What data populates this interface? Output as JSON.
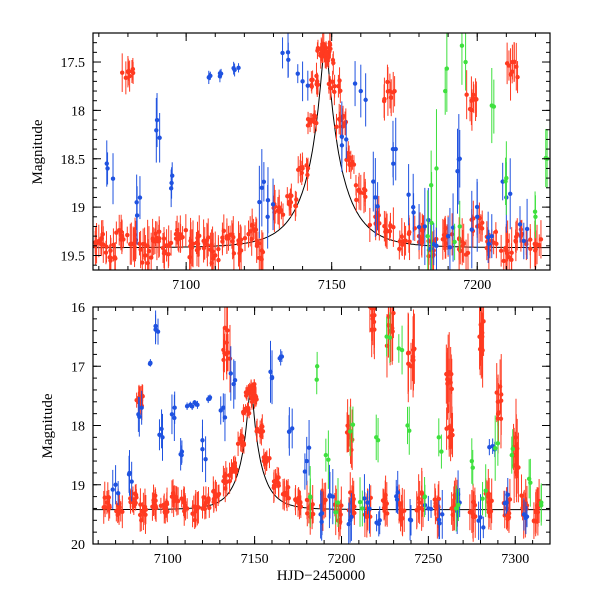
{
  "chart_data": [
    {
      "type": "scatter",
      "title": "",
      "xlabel": "",
      "ylabel": "Magnitude",
      "xlim": [
        7068,
        7225
      ],
      "ylim": [
        19.65,
        17.2
      ],
      "y_inverted": true,
      "x_ticks": [
        7100,
        7150,
        7200
      ],
      "y_ticks": [
        17.5,
        18,
        18.5,
        19,
        19.5
      ],
      "x_tick_labels": [
        "7100",
        "7150",
        "7200"
      ],
      "y_tick_labels": [
        "17.5",
        "18",
        "18.5",
        "19",
        "19.5"
      ],
      "grid": false,
      "model_curve": {
        "color": "#000000",
        "t0": 7147.8,
        "baseline": 19.42,
        "peak": 17.35,
        "u0": 0.11,
        "tE": 13.0
      },
      "series": [
        {
          "name": "red",
          "color": "#ff3a20",
          "points": [
            [
              7070,
              19.35,
              0.15
            ],
            [
              7074,
              19.45,
              0.18
            ],
            [
              7078,
              19.3,
              0.14
            ],
            [
              7082,
              19.38,
              0.16
            ],
            [
              7086,
              19.5,
              0.2
            ],
            [
              7090,
              19.32,
              0.15
            ],
            [
              7094,
              19.4,
              0.17
            ],
            [
              7098,
              19.28,
              0.14
            ],
            [
              7102,
              19.42,
              0.18
            ],
            [
              7106,
              19.35,
              0.16
            ],
            [
              7110,
              19.5,
              0.2
            ],
            [
              7114,
              19.3,
              0.15
            ],
            [
              7118,
              19.38,
              0.17
            ],
            [
              7122,
              19.25,
              0.14
            ],
            [
              7126,
              19.45,
              0.18
            ],
            [
              7132,
              19.05,
              0.15
            ],
            [
              7136,
              18.95,
              0.12
            ],
            [
              7140,
              18.6,
              0.12
            ],
            [
              7143,
              18.1,
              0.1
            ],
            [
              7145,
              17.7,
              0.1
            ],
            [
              7147,
              17.4,
              0.1
            ],
            [
              7148,
              17.35,
              0.1
            ],
            [
              7149,
              17.45,
              0.1
            ],
            [
              7151,
              17.75,
              0.1
            ],
            [
              7153,
              18.1,
              0.12
            ],
            [
              7156,
              18.5,
              0.12
            ],
            [
              7160,
              18.85,
              0.15
            ],
            [
              7165,
              19.1,
              0.15
            ],
            [
              7170,
              19.25,
              0.16
            ],
            [
              7175,
              19.35,
              0.18
            ],
            [
              7180,
              19.3,
              0.15
            ],
            [
              7185,
              19.45,
              0.2
            ],
            [
              7190,
              19.3,
              0.16
            ],
            [
              7195,
              19.4,
              0.18
            ],
            [
              7200,
              19.2,
              0.15
            ],
            [
              7205,
              19.35,
              0.16
            ],
            [
              7210,
              19.45,
              0.2
            ],
            [
              7215,
              19.3,
              0.15
            ],
            [
              7220,
              19.4,
              0.18
            ],
            [
              7080,
              17.6,
              0.15
            ],
            [
              7170,
              17.8,
              0.2
            ],
            [
              7198,
              17.9,
              0.2
            ],
            [
              7212,
              17.6,
              0.2
            ]
          ]
        },
        {
          "name": "blue",
          "color": "#1f52e0",
          "points": [
            [
              7073,
              18.6,
              0.2
            ],
            [
              7083,
              18.95,
              0.3
            ],
            [
              7090,
              18.1,
              0.4
            ],
            [
              7095,
              18.75,
              0.15
            ],
            [
              7108,
              17.65,
              0.05
            ],
            [
              7112,
              17.62,
              0.05
            ],
            [
              7118,
              17.56,
              0.05
            ],
            [
              7126,
              18.8,
              0.3
            ],
            [
              7128,
              19.1,
              0.4
            ],
            [
              7135,
              17.4,
              0.2
            ],
            [
              7140,
              17.7,
              0.15
            ],
            [
              7155,
              18.3,
              0.3
            ],
            [
              7160,
              17.8,
              0.25
            ],
            [
              7165,
              18.9,
              0.3
            ],
            [
              7172,
              18.4,
              0.3
            ],
            [
              7178,
              19.0,
              0.3
            ],
            [
              7182,
              19.2,
              0.3
            ],
            [
              7186,
              19.4,
              0.2
            ],
            [
              7190,
              19.3,
              0.3
            ],
            [
              7194,
              18.5,
              0.4
            ],
            [
              7200,
              19.1,
              0.3
            ],
            [
              7205,
              19.3,
              0.2
            ],
            [
              7210,
              18.9,
              0.3
            ],
            [
              7216,
              19.35,
              0.3
            ]
          ]
        },
        {
          "name": "green",
          "color": "#3ee03e",
          "points": [
            [
              7183,
              19.3,
              0.4
            ],
            [
              7186,
              18.6,
              0.5
            ],
            [
              7189,
              17.8,
              0.4
            ],
            [
              7194,
              19.2,
              0.3
            ],
            [
              7196,
              17.5,
              0.3
            ],
            [
              7205,
              17.95,
              0.3
            ],
            [
              7210,
              18.7,
              0.4
            ],
            [
              7220,
              19.1,
              0.3
            ],
            [
              7224,
              18.5,
              0.4
            ]
          ]
        }
      ]
    },
    {
      "type": "scatter",
      "title": "",
      "xlabel": "HJD−2450000",
      "ylabel": "Magnitude",
      "xlim": [
        7057,
        7320
      ],
      "ylim": [
        20.0,
        16.0
      ],
      "y_inverted": true,
      "x_ticks": [
        7100,
        7150,
        7200,
        7250,
        7300
      ],
      "y_ticks": [
        16,
        17,
        18,
        19,
        20
      ],
      "x_tick_labels": [
        "7100",
        "7150",
        "7200",
        "7250",
        "7300"
      ],
      "y_tick_labels": [
        "16",
        "17",
        "18",
        "19",
        "20"
      ],
      "grid": false,
      "model_curve": {
        "color": "#000000",
        "t0": 7147.8,
        "baseline": 19.42,
        "peak": 17.35,
        "u0": 0.11,
        "tE": 13.0
      },
      "series": [
        {
          "name": "red",
          "color": "#ff3a20",
          "points": [
            [
              7065,
              19.3,
              0.2
            ],
            [
              7072,
              19.4,
              0.2
            ],
            [
              7080,
              19.25,
              0.2
            ],
            [
              7086,
              19.45,
              0.25
            ],
            [
              7092,
              19.3,
              0.2
            ],
            [
              7098,
              19.4,
              0.2
            ],
            [
              7104,
              19.2,
              0.2
            ],
            [
              7110,
              19.35,
              0.2
            ],
            [
              7116,
              19.45,
              0.25
            ],
            [
              7122,
              19.3,
              0.2
            ],
            [
              7128,
              19.2,
              0.2
            ],
            [
              7134,
              18.95,
              0.2
            ],
            [
              7138,
              18.7,
              0.15
            ],
            [
              7142,
              18.25,
              0.15
            ],
            [
              7145,
              17.75,
              0.12
            ],
            [
              7147,
              17.45,
              0.1
            ],
            [
              7148,
              17.35,
              0.1
            ],
            [
              7150,
              17.55,
              0.12
            ],
            [
              7153,
              18.1,
              0.15
            ],
            [
              7157,
              18.6,
              0.15
            ],
            [
              7162,
              18.95,
              0.2
            ],
            [
              7168,
              19.15,
              0.2
            ],
            [
              7175,
              19.3,
              0.2
            ],
            [
              7182,
              19.4,
              0.25
            ],
            [
              7190,
              19.3,
              0.3
            ],
            [
              7198,
              19.45,
              0.3
            ],
            [
              7206,
              19.3,
              0.3
            ],
            [
              7215,
              19.4,
              0.3
            ],
            [
              7225,
              19.35,
              0.3
            ],
            [
              7235,
              19.45,
              0.3
            ],
            [
              7245,
              19.3,
              0.3
            ],
            [
              7255,
              19.4,
              0.3
            ],
            [
              7265,
              19.35,
              0.3
            ],
            [
              7275,
              19.45,
              0.3
            ],
            [
              7285,
              19.3,
              0.3
            ],
            [
              7295,
              19.4,
              0.3
            ],
            [
              7305,
              19.35,
              0.3
            ],
            [
              7312,
              19.45,
              0.3
            ],
            [
              7084,
              17.6,
              0.2
            ],
            [
              7134,
              16.6,
              0.5
            ],
            [
              7218,
              16.2,
              0.4
            ],
            [
              7228,
              16.4,
              0.5
            ],
            [
              7240,
              17.0,
              0.5
            ],
            [
              7262,
              17.1,
              0.5
            ],
            [
              7281,
              16.5,
              0.5
            ],
            [
              7290,
              17.6,
              0.5
            ],
            [
              7300,
              18.5,
              0.5
            ],
            [
              7262,
              18.2,
              0.3
            ],
            [
              7205,
              18.2,
              0.4
            ]
          ]
        },
        {
          "name": "blue",
          "color": "#1f52e0",
          "points": [
            [
              7070,
              19.0,
              0.3
            ],
            [
              7078,
              18.8,
              0.3
            ],
            [
              7085,
              17.7,
              0.3
            ],
            [
              7090,
              16.95,
              0.05
            ],
            [
              7093,
              16.38,
              0.2
            ],
            [
              7097,
              18.2,
              0.3
            ],
            [
              7104,
              17.7,
              0.3
            ],
            [
              7108,
              18.5,
              0.2
            ],
            [
              7113,
              17.65,
              0.05
            ],
            [
              7116,
              17.63,
              0.05
            ],
            [
              7120,
              18.4,
              0.3
            ],
            [
              7124,
              17.55,
              0.05
            ],
            [
              7132,
              17.7,
              0.3
            ],
            [
              7138,
              17.3,
              0.4
            ],
            [
              7160,
              17.2,
              0.4
            ],
            [
              7165,
              16.85,
              0.1
            ],
            [
              7170,
              18.1,
              0.3
            ],
            [
              7180,
              18.6,
              0.4
            ],
            [
              7188,
              19.5,
              0.3
            ],
            [
              7195,
              19.2,
              0.4
            ],
            [
              7205,
              19.6,
              0.3
            ],
            [
              7215,
              19.3,
              0.3
            ],
            [
              7222,
              19.6,
              0.2
            ],
            [
              7232,
              19.25,
              0.3
            ],
            [
              7240,
              19.6,
              0.3
            ],
            [
              7250,
              19.4,
              0.2
            ],
            [
              7258,
              19.5,
              0.3
            ],
            [
              7268,
              19.3,
              0.3
            ],
            [
              7280,
              19.55,
              0.3
            ],
            [
              7287,
              18.35,
              0.1
            ],
            [
              7295,
              19.3,
              0.3
            ],
            [
              7305,
              19.5,
              0.2
            ]
          ]
        },
        {
          "name": "green",
          "color": "#3ee03e",
          "points": [
            [
              7182,
              19.2,
              0.4
            ],
            [
              7186,
              17.0,
              0.4
            ],
            [
              7191,
              18.5,
              0.4
            ],
            [
              7198,
              19.3,
              0.3
            ],
            [
              7205,
              18.1,
              0.4
            ],
            [
              7212,
              19.4,
              0.3
            ],
            [
              7220,
              18.2,
              0.3
            ],
            [
              7226,
              16.5,
              0.4
            ],
            [
              7233,
              16.7,
              0.3
            ],
            [
              7238,
              18.0,
              0.4
            ],
            [
              7248,
              19.2,
              0.3
            ],
            [
              7256,
              18.2,
              0.4
            ],
            [
              7266,
              19.4,
              0.3
            ],
            [
              7275,
              18.6,
              0.3
            ],
            [
              7283,
              19.1,
              0.4
            ],
            [
              7290,
              18.3,
              0.4
            ],
            [
              7298,
              18.5,
              0.3
            ],
            [
              7308,
              18.9,
              0.3
            ],
            [
              7315,
              19.3,
              0.3
            ]
          ]
        }
      ]
    }
  ]
}
